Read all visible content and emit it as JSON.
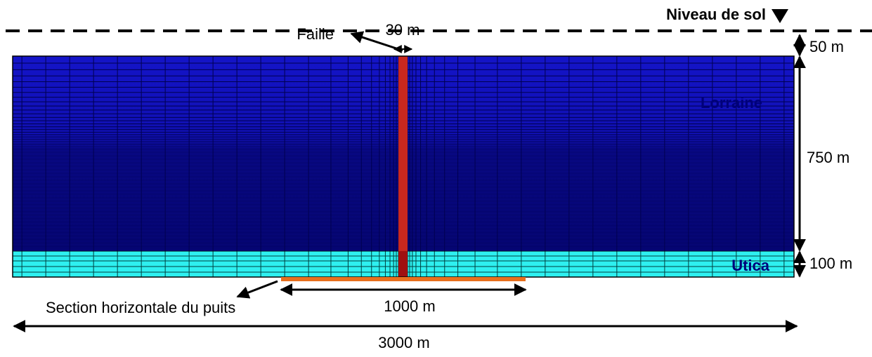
{
  "ground": {
    "label": "Niveau de sol"
  },
  "fault": {
    "label": "Faille",
    "width": "30 m"
  },
  "layers": [
    {
      "name": "Lorraine",
      "thickness": "750 m"
    },
    {
      "name": "Utica",
      "thickness": "100 m"
    }
  ],
  "overburden": "50 m",
  "well": {
    "label": "Section horizontale du puits",
    "length": "1000 m"
  },
  "domain_width": "3000 m"
}
